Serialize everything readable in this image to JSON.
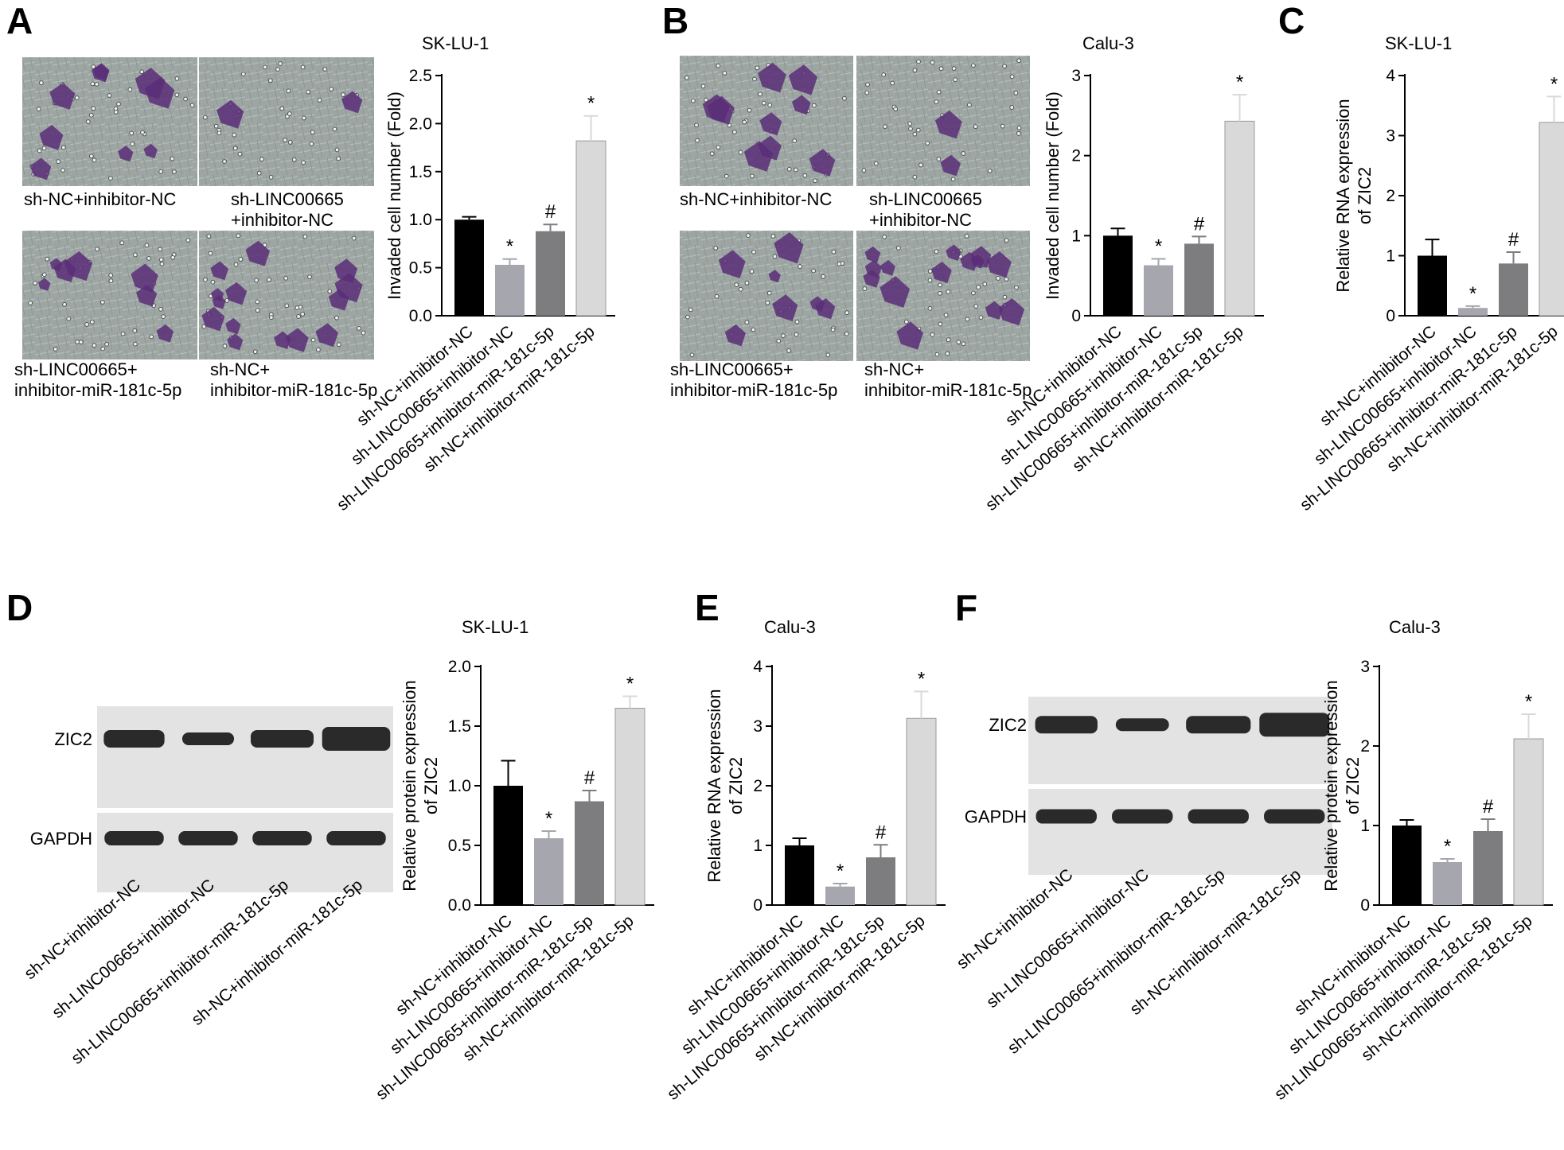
{
  "panels": [
    "A",
    "B",
    "C",
    "D",
    "E",
    "F"
  ],
  "categories": [
    "sh-NC+inhibitor-NC",
    "sh-LINC00665+inhibitor-NC",
    "sh-LINC00665+inhibitor-miR-181c-5p",
    "sh-NC+inhibitor-miR-181c-5p"
  ],
  "colors": {
    "bar1": "#000000",
    "bar2": "#a6a6ae",
    "bar3": "#7d7d7f",
    "bar4": "#d9d9d9",
    "stain": "#5a2d78",
    "background_field": "#9aa3a0"
  },
  "image_groups": {
    "A": [
      "sh-NC+inhibitor-NC",
      "sh-LINC00665\n+inhibitor-NC",
      "sh-LINC00665+\ninhibitor-miR-181c-5p",
      "sh-NC+\ninhibitor-miR-181c-5p"
    ],
    "B": [
      "sh-NC+inhibitor-NC",
      "sh-LINC00665\n+inhibitor-NC",
      "sh-LINC00665+\ninhibitor-miR-181c-5p",
      "sh-NC+\ninhibitor-miR-181c-5p"
    ]
  },
  "blots": {
    "D": {
      "title": "SK-LU-1",
      "rows": [
        "ZIC2",
        "GAPDH"
      ],
      "lane_labels": [
        "sh-NC+inhibitor-NC",
        "sh-LINC00665+inhibitor-NC",
        "sh-LINC00665+inhibitor-miR-181c-5p",
        "sh-NC+inhibitor-miR-181c-5p"
      ]
    },
    "F": {
      "title": "Calu-3",
      "rows": [
        "ZIC2",
        "GAPDH"
      ],
      "lane_labels": [
        "sh-NC+inhibitor-NC",
        "sh-LINC00665+inhibitor-NC",
        "sh-LINC00665+inhibitor-miR-181c-5p",
        "sh-NC+inhibitor-miR-181c-5p"
      ]
    }
  },
  "chart_data": [
    {
      "panel": "A",
      "type": "bar",
      "title": "SK-LU-1",
      "ylabel": "Invaded cell number (Fold)",
      "categories": [
        "sh-NC+inhibitor-NC",
        "sh-LINC00665+inhibitor-NC",
        "sh-LINC00665+inhibitor-miR-181c-5p",
        "sh-NC+inhibitor-miR-181c-5p"
      ],
      "values": [
        1.0,
        0.53,
        0.88,
        1.82
      ],
      "errors": [
        0.03,
        0.06,
        0.07,
        0.26
      ],
      "significance": [
        "",
        "*",
        "#",
        "*"
      ],
      "ylim": [
        0,
        2.5
      ],
      "yticks": [
        "0.0",
        "0.5",
        "1.0",
        "1.5",
        "2.0",
        "2.5"
      ]
    },
    {
      "panel": "B",
      "type": "bar",
      "title": "Calu-3",
      "ylabel": "Invaded cell number (Fold)",
      "categories": [
        "sh-NC+inhibitor-NC",
        "sh-LINC00665+inhibitor-NC",
        "sh-LINC00665+inhibitor-miR-181c-5p",
        "sh-NC+inhibitor-miR-181c-5p"
      ],
      "values": [
        1.0,
        0.63,
        0.9,
        2.43
      ],
      "errors": [
        0.09,
        0.08,
        0.09,
        0.33
      ],
      "significance": [
        "",
        "*",
        "#",
        "*"
      ],
      "ylim": [
        0,
        3
      ],
      "yticks": [
        "0",
        "1",
        "2",
        "3"
      ]
    },
    {
      "panel": "C",
      "type": "bar",
      "title": "SK-LU-1",
      "ylabel": "Relative RNA expression\nof ZIC2",
      "categories": [
        "sh-NC+inhibitor-NC",
        "sh-LINC00665+inhibitor-NC",
        "sh-LINC00665+inhibitor-miR-181c-5p",
        "sh-NC+inhibitor-miR-181c-5p"
      ],
      "values": [
        1.0,
        0.13,
        0.87,
        3.22
      ],
      "errors": [
        0.27,
        0.03,
        0.19,
        0.43
      ],
      "significance": [
        "",
        "*",
        "#",
        "*"
      ],
      "ylim": [
        0,
        4
      ],
      "yticks": [
        "0",
        "1",
        "2",
        "3",
        "4"
      ]
    },
    {
      "panel": "D",
      "type": "bar",
      "title": "",
      "ylabel": "Relative protein expression\nof ZIC2",
      "categories": [
        "sh-NC+inhibitor-NC",
        "sh-LINC00665+inhibitor-NC",
        "sh-LINC00665+inhibitor-miR-181c-5p",
        "sh-NC+inhibitor-miR-181c-5p"
      ],
      "values": [
        1.0,
        0.56,
        0.87,
        1.65
      ],
      "errors": [
        0.21,
        0.06,
        0.09,
        0.1
      ],
      "significance": [
        "",
        "*",
        "#",
        "*"
      ],
      "ylim": [
        0,
        2.0
      ],
      "yticks": [
        "0.0",
        "0.5",
        "1.0",
        "1.5",
        "2.0"
      ]
    },
    {
      "panel": "E",
      "type": "bar",
      "title": "Calu-3",
      "ylabel": "Relative RNA expression\nof ZIC2",
      "categories": [
        "sh-NC+inhibitor-NC",
        "sh-LINC00665+inhibitor-NC",
        "sh-LINC00665+inhibitor-miR-181c-5p",
        "sh-NC+inhibitor-miR-181c-5p"
      ],
      "values": [
        1.0,
        0.31,
        0.8,
        3.13
      ],
      "errors": [
        0.12,
        0.05,
        0.21,
        0.45
      ],
      "significance": [
        "",
        "*",
        "#",
        "*"
      ],
      "ylim": [
        0,
        4
      ],
      "yticks": [
        "0",
        "1",
        "2",
        "3",
        "4"
      ]
    },
    {
      "panel": "F",
      "type": "bar",
      "title": "",
      "ylabel": "Relative protein expression\nof ZIC2",
      "categories": [
        "sh-NC+inhibitor-NC",
        "sh-LINC00665+inhibitor-NC",
        "sh-LINC00665+inhibitor-miR-181c-5p",
        "sh-NC+inhibitor-miR-181c-5p"
      ],
      "values": [
        1.0,
        0.54,
        0.93,
        2.09
      ],
      "errors": [
        0.07,
        0.04,
        0.15,
        0.31
      ],
      "significance": [
        "",
        "*",
        "#",
        "*"
      ],
      "ylim": [
        0,
        3
      ],
      "yticks": [
        "0",
        "1",
        "2",
        "3"
      ]
    }
  ]
}
